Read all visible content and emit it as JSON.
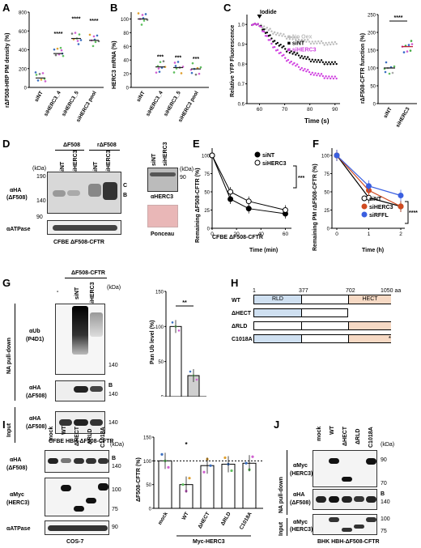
{
  "panels": {
    "A": {
      "label": "A",
      "ylabel": "rΔF508-HRP PM density (%)",
      "yticks": [
        "0",
        "200",
        "400",
        "600",
        "800"
      ],
      "categories": [
        "siNT",
        "siHERC3_4",
        "siHERC3_5",
        "siHERC3 pool"
      ],
      "stars": [
        "****",
        "****",
        "****"
      ]
    },
    "B": {
      "label": "B",
      "ylabel": "HERC3 mRNA (%)",
      "yticks": [
        "0",
        "20",
        "40",
        "60",
        "80",
        "100"
      ],
      "categories": [
        "siNT",
        "siHERC3_4",
        "siHERC3_5",
        "siHERC3 pool"
      ],
      "stars": [
        "***",
        "***",
        "***"
      ]
    },
    "C": {
      "label": "C",
      "ylabel": "Relative YFP Fluorescence",
      "xlabel": "Time (s)",
      "iodide": "Iodide",
      "yticks": [
        "0.6",
        "0.7",
        "0.8",
        "0.9",
        "1.0"
      ],
      "xticks": [
        "60",
        "70",
        "80",
        "90"
      ],
      "legend": [
        "No Oex",
        "siNT",
        "siHERC3"
      ],
      "right_ylabel": "rΔF508-CFTR function (%)",
      "right_yticks": [
        "0",
        "50",
        "100",
        "150",
        "200",
        "250"
      ],
      "right_categories": [
        "siNT",
        "siHERC3"
      ],
      "right_stars": "****"
    },
    "D": {
      "label": "D",
      "group1": "ΔF508",
      "group2": "rΔF508",
      "lanes": [
        "siNT",
        "siHERC3",
        "siNT",
        "siHERC3"
      ],
      "kda": "(kDa)",
      "m190": "190",
      "m140": "140",
      "m90": "90",
      "c": "C",
      "bb": "B",
      "ab1": "αHA",
      "ab1b": "(ΔF508)",
      "ab2": "αATPase",
      "cell": "CFBE ΔF508-CFTR",
      "rlanes": [
        "siNT",
        "siHERC3"
      ],
      "rab": "αHERC3",
      "r90": "90",
      "ponceau": "Ponceau",
      "rkda": "(kDa)"
    },
    "E": {
      "label": "E",
      "ylabel": "Remaining ΔF508-CFTR (%)",
      "xlabel": "Time (min)",
      "yticks": [
        "0",
        "25",
        "50",
        "75",
        "100"
      ],
      "xticks": [
        "0",
        "20",
        "40",
        "60"
      ],
      "legend": [
        "siNT",
        "siHERC3"
      ],
      "stars": "***",
      "note": "CFBE ΔF508-CFTR"
    },
    "F": {
      "label": "F",
      "ylabel": "Remaining PM rΔF508-CFTR (%)",
      "xlabel": "Time (h)",
      "yticks": [
        "0",
        "25",
        "50",
        "75",
        "100"
      ],
      "xticks": [
        "0",
        "1",
        "2"
      ],
      "legend": [
        "siNT",
        "siHERC3",
        "siRFFL"
      ],
      "stars": "****"
    },
    "G": {
      "label": "G",
      "title": "ΔF508-CFTR",
      "lanes": [
        "-",
        "siNT",
        "siHERC3"
      ],
      "kda": "(kDa)",
      "side1": "NA pull-down",
      "side2": "Input",
      "ab1": "αUb",
      "ab1b": "(P4D1)",
      "ab2": "αHA",
      "ab2b": "(ΔF508)",
      "ab3": "αHA",
      "ab3b": "(ΔF508)",
      "m140": "140",
      "bb": "B",
      "cell": "CFBE HBH-ΔF508-CFTR",
      "ylabel": "Pan Ub level (%)",
      "yticks": [
        "0",
        "50",
        "100",
        "150"
      ],
      "categories": [
        "siNT",
        "siHERC3"
      ],
      "stars": "**"
    },
    "H": {
      "label": "H",
      "n1": "1",
      "n377": "377",
      "n702": "702",
      "n1050": "1050 aa",
      "rld": "RLD",
      "hect": "HECT",
      "rows": [
        "WT",
        "ΔHECT",
        "ΔRLD",
        "C1018A"
      ],
      "star": "*"
    },
    "I": {
      "label": "I",
      "lanes": [
        "mock",
        "WT",
        "ΔHECT",
        "ΔRLD",
        "C1018A"
      ],
      "kda": "(kDa)",
      "ab1": "αHA",
      "ab1b": "(ΔF508)",
      "ab2": "αMyc",
      "ab2b": "(HERC3)",
      "ab3": "αATPase",
      "m140": "140",
      "m100": "100",
      "m75": "75",
      "m90": "90",
      "bb": "B",
      "cell": "COS-7",
      "ylabel": "ΔF508-CFTR (%)",
      "yticks": [
        "0",
        "50",
        "100",
        "150"
      ],
      "categories": [
        "mock",
        "WT",
        "ΔHECT",
        "ΔRLD",
        "C1018A"
      ],
      "star": "*",
      "group": "Myc-HERC3"
    },
    "J": {
      "label": "J",
      "lanes": [
        "mock",
        "WT",
        "ΔHECT",
        "ΔRLD",
        "C1018A"
      ],
      "kda": "(kDa)",
      "side1": "NA pull-down",
      "side2": "Input",
      "ab1": "αMyc",
      "ab1b": "(HERC3)",
      "ab2": "αHA",
      "ab2b": "(ΔF508)",
      "ab3": "αMyc",
      "ab3b": "(HERC3)",
      "m90": "90",
      "m70": "70",
      "m140": "140",
      "m100": "100",
      "m75": "75",
      "bb": "B",
      "cell": "BHK HBH-ΔF508-CFTR"
    }
  },
  "chart_data": [
    {
      "type": "scatter",
      "panel": "A",
      "categories": [
        "siNT",
        "siHERC3_4",
        "siHERC3_5",
        "siHERC3 pool"
      ],
      "values": [
        100,
        360,
        520,
        500
      ],
      "ylim": [
        0,
        800
      ]
    },
    {
      "type": "scatter",
      "panel": "B",
      "categories": [
        "siNT",
        "siHERC3_4",
        "siHERC3_5",
        "siHERC3 pool"
      ],
      "values": [
        100,
        30,
        29,
        27
      ],
      "ylim": [
        0,
        110
      ]
    },
    {
      "type": "line",
      "panel": "C",
      "series": [
        {
          "name": "No Oex",
          "x0": 60,
          "end": 0.89
        },
        {
          "name": "siNT",
          "x0": 60,
          "end": 0.78
        },
        {
          "name": "siHERC3",
          "x0": 60,
          "end": 0.7
        }
      ],
      "xlim": [
        55,
        92
      ],
      "ylim": [
        0.6,
        1.05
      ]
    },
    {
      "type": "scatter",
      "panel": "C-right",
      "categories": [
        "siNT",
        "siHERC3"
      ],
      "values": [
        100,
        160
      ],
      "ylim": [
        0,
        250
      ]
    },
    {
      "type": "line",
      "panel": "E",
      "x": [
        0,
        15,
        30,
        60
      ],
      "series": [
        {
          "name": "siNT",
          "values": [
            100,
            40,
            27,
            20
          ]
        },
        {
          "name": "siHERC3",
          "values": [
            100,
            50,
            37,
            25
          ]
        }
      ],
      "ylim": [
        0,
        110
      ]
    },
    {
      "type": "line",
      "panel": "F",
      "x": [
        0,
        1,
        2
      ],
      "series": [
        {
          "name": "siNT",
          "values": [
            100,
            42,
            30
          ]
        },
        {
          "name": "siHERC3",
          "values": [
            100,
            52,
            30
          ]
        },
        {
          "name": "siRFFL",
          "values": [
            100,
            58,
            45
          ]
        }
      ],
      "ylim": [
        0,
        110
      ]
    },
    {
      "type": "bar",
      "panel": "G",
      "categories": [
        "siNT",
        "siHERC3"
      ],
      "values": [
        100,
        30
      ],
      "ylim": [
        0,
        150
      ]
    },
    {
      "type": "bar",
      "panel": "I",
      "categories": [
        "mock",
        "WT",
        "ΔHECT",
        "ΔRLD",
        "C1018A"
      ],
      "values": [
        100,
        50,
        90,
        93,
        95
      ],
      "ylim": [
        0,
        150
      ]
    }
  ]
}
